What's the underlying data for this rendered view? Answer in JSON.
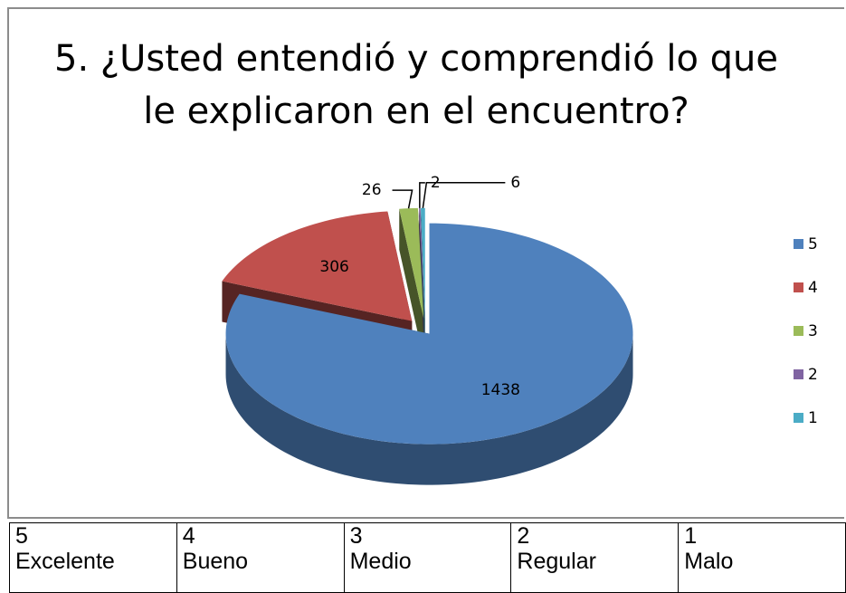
{
  "chart_data": {
    "type": "pie",
    "title": "5.   ¿Usted entendió y comprendió lo que le explicaron en el encuentro?",
    "categories": [
      "5",
      "4",
      "3",
      "2",
      "1"
    ],
    "values": [
      1438,
      306,
      26,
      2,
      6
    ],
    "colors": [
      "#4f81bd",
      "#c0504d",
      "#9bbb59",
      "#8064a2",
      "#4bacc6"
    ],
    "legend": "right"
  },
  "table": {
    "columns": [
      {
        "value": "5",
        "label": "Excelente"
      },
      {
        "value": "4",
        "label": "Bueno"
      },
      {
        "value": "3",
        "label": "Medio"
      },
      {
        "value": "2",
        "label": "Regular"
      },
      {
        "value": "1",
        "label": "Malo"
      }
    ]
  }
}
